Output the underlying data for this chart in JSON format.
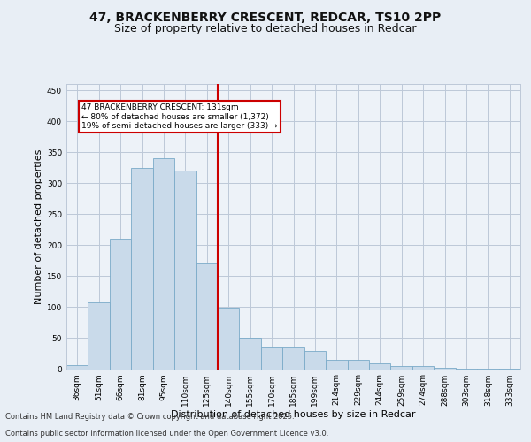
{
  "title_line1": "47, BRACKENBERRY CRESCENT, REDCAR, TS10 2PP",
  "title_line2": "Size of property relative to detached houses in Redcar",
  "xlabel": "Distribution of detached houses by size in Redcar",
  "ylabel": "Number of detached properties",
  "categories": [
    "36sqm",
    "51sqm",
    "66sqm",
    "81sqm",
    "95sqm",
    "110sqm",
    "125sqm",
    "140sqm",
    "155sqm",
    "170sqm",
    "185sqm",
    "199sqm",
    "214sqm",
    "229sqm",
    "244sqm",
    "259sqm",
    "274sqm",
    "288sqm",
    "303sqm",
    "318sqm",
    "333sqm"
  ],
  "values": [
    6,
    107,
    211,
    325,
    340,
    320,
    170,
    99,
    50,
    35,
    35,
    29,
    15,
    15,
    9,
    5,
    5,
    2,
    1,
    1,
    1
  ],
  "bar_color": "#c9daea",
  "bar_edge_color": "#7aaac8",
  "vline_color": "#cc0000",
  "vline_index": 6.5,
  "annotation_text": "47 BRACKENBERRY CRESCENT: 131sqm\n← 80% of detached houses are smaller (1,372)\n19% of semi-detached houses are larger (333) →",
  "annotation_box_color": "#cc0000",
  "ylim": [
    0,
    460
  ],
  "yticks": [
    0,
    50,
    100,
    150,
    200,
    250,
    300,
    350,
    400,
    450
  ],
  "bg_color": "#e8eef5",
  "plot_bg_color": "#edf2f8",
  "grid_color": "#bdc8d8",
  "footer_line1": "Contains HM Land Registry data © Crown copyright and database right 2025.",
  "footer_line2": "Contains public sector information licensed under the Open Government Licence v3.0.",
  "title_fontsize": 10,
  "subtitle_fontsize": 9,
  "tick_fontsize": 6.5,
  "label_fontsize": 8,
  "footer_fontsize": 6,
  "annotation_fontsize": 6.5
}
